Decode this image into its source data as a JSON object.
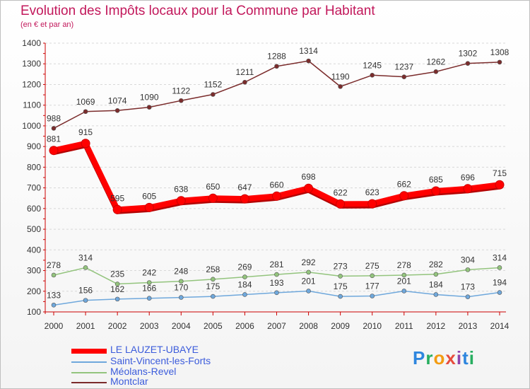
{
  "header": {
    "title": "Evolution des Impôts locaux pour la Commune par Habitant",
    "subtitle": "(en € et par an)"
  },
  "logo": {
    "text": "Proxiti",
    "letters": [
      {
        "ch": "P",
        "color": "#2e86de"
      },
      {
        "ch": "r",
        "color": "#27ae60"
      },
      {
        "ch": "o",
        "color": "#f39c12"
      },
      {
        "ch": "x",
        "color": "#e74c3c"
      },
      {
        "ch": "i",
        "color": "#8e44ad"
      },
      {
        "ch": "t",
        "color": "#2e86de"
      },
      {
        "ch": "i",
        "color": "#27ae60"
      }
    ]
  },
  "chart_data": {
    "type": "line",
    "x": [
      "2000",
      "2001",
      "2002",
      "2003",
      "2004",
      "2005",
      "2006",
      "2007",
      "2008",
      "2009",
      "2010",
      "2011",
      "2012",
      "2013",
      "2014"
    ],
    "ylim": [
      100,
      1400
    ],
    "yticks": [
      100,
      200,
      300,
      400,
      500,
      600,
      700,
      800,
      900,
      1000,
      1100,
      1200,
      1300,
      1400
    ],
    "grid": true,
    "legend_position": "bottom-left",
    "series": [
      {
        "name": "LE LAUZET-UBAYE",
        "color": "#ff0000",
        "values": [
          881,
          915,
          595,
          605,
          638,
          650,
          647,
          660,
          698,
          622,
          623,
          662,
          685,
          696,
          715
        ]
      },
      {
        "name": "Saint-Vincent-les-Forts",
        "color": "#6fa8dc",
        "values": [
          133,
          156,
          162,
          166,
          170,
          175,
          184,
          193,
          201,
          175,
          177,
          201,
          184,
          173,
          194
        ]
      },
      {
        "name": "Méolans-Revel",
        "color": "#93c47d",
        "values": [
          278,
          314,
          235,
          242,
          248,
          258,
          269,
          281,
          292,
          273,
          275,
          278,
          282,
          304,
          314
        ]
      },
      {
        "name": "Montclar",
        "color": "#7b2c2c",
        "values": [
          988,
          1069,
          1074,
          1090,
          1122,
          1152,
          1211,
          1288,
          1314,
          1190,
          1245,
          1237,
          1262,
          1302,
          1308
        ]
      }
    ]
  }
}
